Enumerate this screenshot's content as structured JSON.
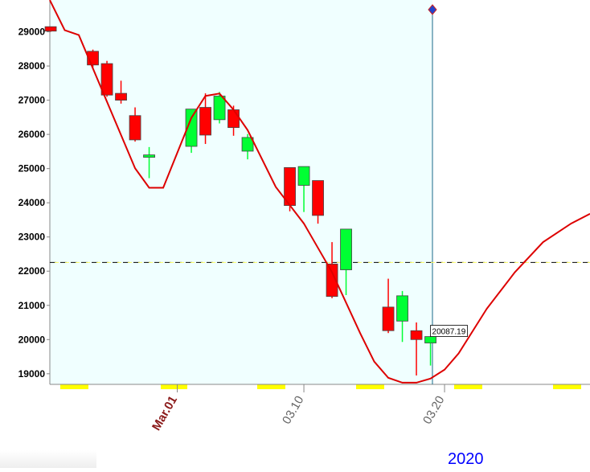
{
  "chart_data": {
    "type": "candlestick",
    "x": [
      -9,
      -6,
      -5,
      -4,
      -3,
      -2,
      1,
      2,
      3,
      4,
      5,
      8,
      9,
      10,
      11,
      12,
      15,
      16,
      17,
      18
    ],
    "open": [
      29150,
      28430,
      28070,
      27200,
      26550,
      25330,
      25650,
      26790,
      26430,
      26720,
      25510,
      25030,
      24510,
      24650,
      22210,
      22040,
      20950,
      20540,
      20260,
      19900
    ],
    "high": [
      29150,
      28480,
      28150,
      27570,
      26790,
      25630,
      26740,
      27200,
      27240,
      26840,
      26010,
      25030,
      25060,
      24650,
      22850,
      23230,
      21780,
      21420,
      20500,
      20087.19
    ],
    "low": [
      29000,
      27960,
      27100,
      26900,
      25790,
      24720,
      25460,
      25720,
      26320,
      25960,
      25270,
      23750,
      23730,
      23390,
      21210,
      21300,
      20190,
      19930,
      18950,
      19240
    ],
    "close": [
      29020,
      28030,
      27150,
      27000,
      25840,
      25400,
      26740,
      25980,
      27120,
      26200,
      25910,
      23920,
      25060,
      23630,
      21260,
      23230,
      20260,
      21280,
      20000,
      20087.19
    ],
    "up_color": "#00ff33",
    "down_color": "#ff0000",
    "line": {
      "color": "#dd0000",
      "x": [
        -9.06,
        -8,
        -7,
        -5,
        -3,
        -2,
        -1,
        1,
        2,
        3,
        4,
        5,
        7,
        9,
        11,
        13,
        14,
        15,
        16,
        17,
        18,
        19,
        20,
        22,
        24,
        26,
        28,
        29.34
      ],
      "values": [
        29926,
        29048,
        28905,
        26957,
        25010,
        24439,
        24439,
        26482,
        27124,
        27195,
        26720,
        26126,
        24463,
        23394,
        21969,
        20188,
        19356,
        18881,
        18739,
        18739,
        18858,
        19119,
        19594,
        20900,
        21969,
        22848,
        23394,
        23679
      ]
    },
    "hline": {
      "value": 22254,
      "color": "#000000"
    },
    "xlim": [
      -9.06,
      29.34
    ],
    "ylim": [
      18690,
      29930
    ],
    "xticks": [
      {
        "value": 0,
        "label": "Mar.01"
      },
      {
        "value": 9,
        "label": "03.10"
      },
      {
        "value": 19,
        "label": "03.20"
      }
    ],
    "yticks": [
      19000,
      20000,
      21000,
      22000,
      23000,
      24000,
      25000,
      26000,
      27000,
      28000,
      29000
    ],
    "annotation": "2020"
  }
}
